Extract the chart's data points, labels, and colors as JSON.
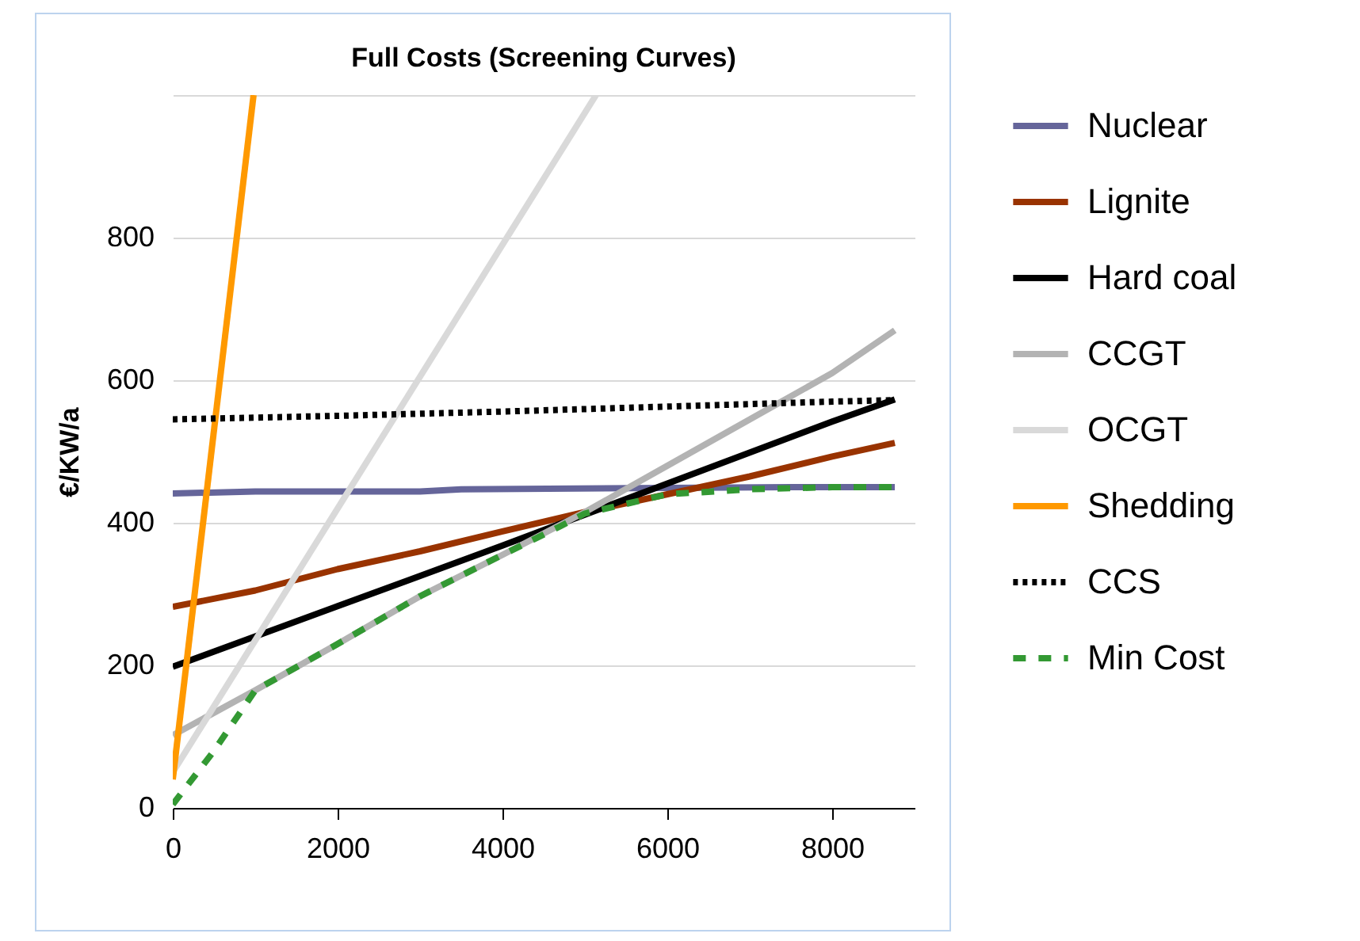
{
  "chart_data": {
    "type": "line",
    "title": "Full Costs (Screening Curves)",
    "ylabel": "€/KW/a",
    "xlim": [
      0,
      9000
    ],
    "xticks": [
      0,
      2000,
      4000,
      6000,
      8000
    ],
    "ylim": [
      0,
      1000
    ],
    "yticks": [
      0,
      200,
      400,
      600,
      800,
      {
        "value": 1000,
        "label": null
      }
    ],
    "grid": "y",
    "legend": "right",
    "series": [
      {
        "name": "Nuclear",
        "color": "#65659a",
        "line_style": "solid",
        "x": [
          0,
          1000,
          3000,
          3500,
          7500,
          8760
        ],
        "values": [
          441,
          444,
          444,
          447,
          450,
          450
        ]
      },
      {
        "name": "Lignite",
        "color": "#993300",
        "line_style": "solid",
        "x": [
          0,
          1000,
          2000,
          3000,
          4000,
          5000,
          6000,
          7000,
          8000,
          8760
        ],
        "values": [
          282,
          305,
          335,
          360,
          388,
          415,
          440,
          465,
          493,
          512
        ]
      },
      {
        "name": "Hard coal",
        "color": "#000000",
        "line_style": "solid",
        "x": [
          0,
          2000,
          4000,
          6000,
          8000,
          8760
        ],
        "values": [
          198,
          283,
          368,
          455,
          542,
          573
        ]
      },
      {
        "name": "CCGT",
        "color": "#b3b3b3",
        "line_style": "solid",
        "x": [
          0,
          1000,
          2000,
          3000,
          4000,
          5000,
          6000,
          7000,
          8000,
          8760
        ],
        "values": [
          102,
          165,
          230,
          297,
          355,
          415,
          480,
          545,
          610,
          670
        ]
      },
      {
        "name": "OCGT",
        "color": "#d9d9d9",
        "line_style": "solid",
        "x": [
          0,
          5135
        ],
        "values": [
          50,
          1000
        ]
      },
      {
        "name": "Shedding",
        "color": "#ff9900",
        "line_style": "solid",
        "x": [
          0,
          980
        ],
        "values": [
          40,
          1000
        ]
      },
      {
        "name": "CCS",
        "color": "#000000",
        "line_style": "dotted",
        "x": [
          0,
          2000,
          4000,
          6000,
          8000,
          8760
        ],
        "values": [
          545,
          550,
          556,
          563,
          570,
          572
        ]
      },
      {
        "name": "Min Cost",
        "color": "#339933",
        "line_style": "dashed",
        "x": [
          0,
          500,
          1000,
          2000,
          3000,
          4000,
          4700,
          5000,
          6000,
          7000,
          8000,
          8760
        ],
        "values": [
          5,
          80,
          165,
          230,
          297,
          355,
          395,
          413,
          440,
          447,
          450,
          450
        ]
      }
    ]
  }
}
